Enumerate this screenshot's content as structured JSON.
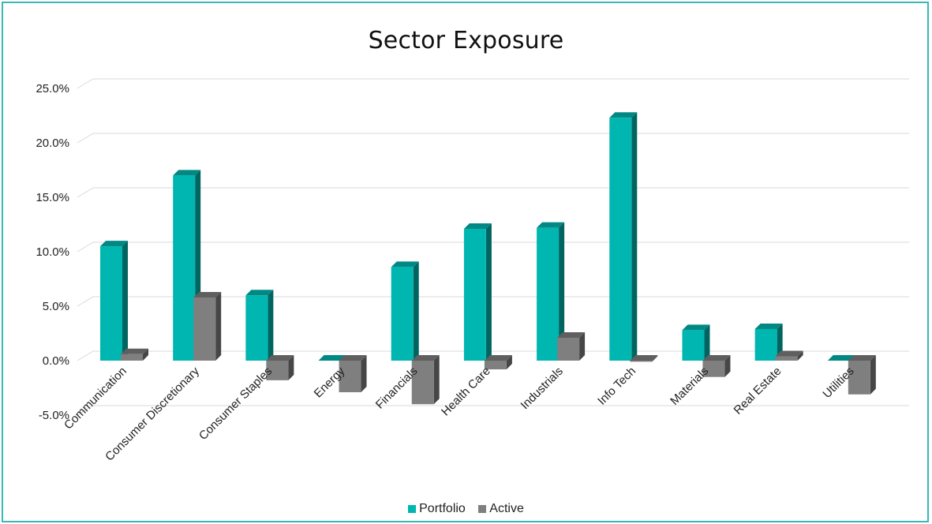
{
  "chart_data": {
    "type": "bar",
    "title": "Sector Exposure",
    "categories": [
      "Communication",
      "Consumer Discretionary",
      "Consumer Staples",
      "Energy",
      "Financials",
      "Health Care",
      "Industrials",
      "Info Tech",
      "Materials",
      "Real Estate",
      "Utilities"
    ],
    "series": [
      {
        "name": "Portfolio",
        "color": "#00b6b0",
        "values": [
          10.5,
          17.0,
          6.0,
          0.0,
          8.6,
          12.1,
          12.2,
          22.3,
          2.8,
          2.9,
          0.0
        ]
      },
      {
        "name": "Active",
        "color": "#7f7f7f",
        "values": [
          0.6,
          5.8,
          -1.8,
          -2.9,
          -4.0,
          -0.8,
          2.1,
          -0.1,
          -1.5,
          0.4,
          -3.1
        ]
      }
    ],
    "y_ticks": [
      "-5.0%",
      "0.0%",
      "5.0%",
      "10.0%",
      "15.0%",
      "20.0%",
      "25.0%"
    ],
    "ylim": [
      -5,
      25
    ],
    "grid": true,
    "legend": "bottom-center"
  }
}
